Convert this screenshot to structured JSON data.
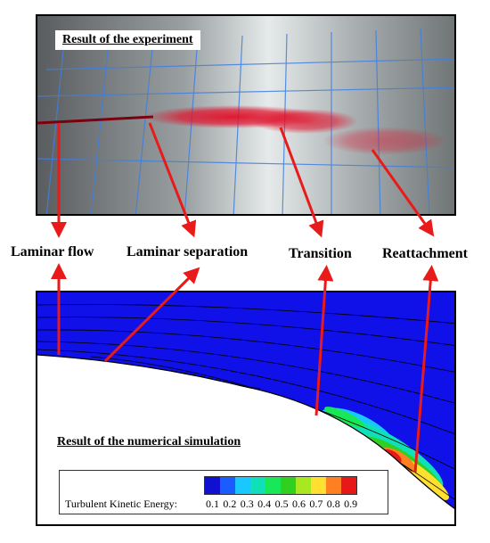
{
  "experiment": {
    "caption": "Result of the experiment"
  },
  "simulation": {
    "caption": "Result of the numerical simulation"
  },
  "labels": {
    "laminar_flow": "Laminar flow",
    "laminar_separation": "Laminar separation",
    "transition": "Transition",
    "reattachment": "Reattachment"
  },
  "legend": {
    "title": "Turbulent Kinetic Energy:",
    "ticks": [
      "0.1",
      "0.2",
      "0.3",
      "0.4",
      "0.5",
      "0.6",
      "0.7",
      "0.8",
      "0.9"
    ],
    "colors": [
      "#1010d0",
      "#1a5cff",
      "#18c8ff",
      "#10e0b8",
      "#18e858",
      "#30d020",
      "#a8e820",
      "#ffe030",
      "#ff8020",
      "#e81818"
    ]
  },
  "colors": {
    "arrow": "#e81a1a",
    "field": "#1010e8",
    "dye": "#e0102a"
  }
}
